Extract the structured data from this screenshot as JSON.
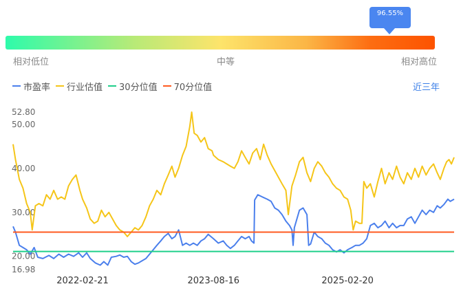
{
  "indicator": {
    "tooltip_value": "96.55%",
    "percentile": 0.9655,
    "low_label": "相对低位",
    "mid_label": "中等",
    "high_label": "相对高位"
  },
  "period_link": "近三年",
  "colors": {
    "pe": "#4a7fec",
    "industry": "#f5c518",
    "p30": "#1fcf8a",
    "p70": "#ff5a1f"
  },
  "chart_data": {
    "type": "line",
    "title": "",
    "xlabel": "",
    "ylabel": "",
    "ylim": [
      16.98,
      52.8
    ],
    "yticks": [
      16.98,
      20.0,
      30.0,
      40.0,
      50.0,
      52.8
    ],
    "ytick_labels": [
      "16.98",
      "20.00",
      "30.00",
      "40.00",
      "50.00",
      "52.80"
    ],
    "x_range": [
      "2021-05-10",
      "2026-05-06"
    ],
    "xtick_labels": [
      "2022-02-21",
      "2023-08-16",
      "2025-02-20"
    ],
    "legend_position": "top-left",
    "grid": false,
    "series": [
      {
        "name": "市盈率",
        "color_key": "pe",
        "points": [
          [
            "2021-05-10",
            26.8
          ],
          [
            "2021-05-20",
            25.5
          ],
          [
            "2021-06-05",
            22.5
          ],
          [
            "2021-06-20",
            22.0
          ],
          [
            "2021-07-05",
            21.5
          ],
          [
            "2021-07-20",
            20.5
          ],
          [
            "2021-08-05",
            22.0
          ],
          [
            "2021-08-20",
            19.8
          ],
          [
            "2021-09-10",
            19.5
          ],
          [
            "2021-10-05",
            20.2
          ],
          [
            "2021-10-25",
            19.5
          ],
          [
            "2021-11-15",
            20.5
          ],
          [
            "2021-12-05",
            19.8
          ],
          [
            "2021-12-25",
            20.5
          ],
          [
            "2022-01-15",
            20.0
          ],
          [
            "2022-02-05",
            20.8
          ],
          [
            "2022-02-21",
            19.8
          ],
          [
            "2022-03-10",
            20.8
          ],
          [
            "2022-03-25",
            19.5
          ],
          [
            "2022-04-15",
            18.5
          ],
          [
            "2022-05-05",
            18.0
          ],
          [
            "2022-05-20",
            18.8
          ],
          [
            "2022-06-05",
            18.0
          ],
          [
            "2022-06-20",
            19.8
          ],
          [
            "2022-07-10",
            20.0
          ],
          [
            "2022-07-25",
            20.3
          ],
          [
            "2022-08-10",
            19.8
          ],
          [
            "2022-08-25",
            20.0
          ],
          [
            "2022-09-10",
            18.8
          ],
          [
            "2022-09-25",
            18.2
          ],
          [
            "2022-10-10",
            18.5
          ],
          [
            "2022-10-25",
            19.0
          ],
          [
            "2022-11-10",
            19.5
          ],
          [
            "2022-11-25",
            20.5
          ],
          [
            "2022-12-10",
            21.5
          ],
          [
            "2022-12-25",
            22.5
          ],
          [
            "2023-01-10",
            23.5
          ],
          [
            "2023-01-25",
            24.5
          ],
          [
            "2023-02-10",
            25.2
          ],
          [
            "2023-02-25",
            24.0
          ],
          [
            "2023-03-10",
            24.5
          ],
          [
            "2023-03-25",
            26.0
          ],
          [
            "2023-04-10",
            22.5
          ],
          [
            "2023-04-25",
            23.0
          ],
          [
            "2023-05-10",
            22.5
          ],
          [
            "2023-05-25",
            23.0
          ],
          [
            "2023-06-10",
            22.5
          ],
          [
            "2023-06-25",
            23.5
          ],
          [
            "2023-07-10",
            24.0
          ],
          [
            "2023-07-25",
            25.0
          ],
          [
            "2023-08-05",
            24.5
          ],
          [
            "2023-08-16",
            24.0
          ],
          [
            "2023-09-05",
            23.0
          ],
          [
            "2023-09-25",
            23.5
          ],
          [
            "2023-10-10",
            22.5
          ],
          [
            "2023-10-25",
            21.8
          ],
          [
            "2023-11-10",
            22.5
          ],
          [
            "2023-11-25",
            23.5
          ],
          [
            "2023-12-10",
            24.5
          ],
          [
            "2023-12-25",
            24.0
          ],
          [
            "2024-01-10",
            24.5
          ],
          [
            "2024-01-20",
            23.5
          ],
          [
            "2024-01-30",
            23.0
          ],
          [
            "2024-02-02",
            32.8
          ],
          [
            "2024-02-15",
            34.0
          ],
          [
            "2024-03-05",
            33.5
          ],
          [
            "2024-03-25",
            33.0
          ],
          [
            "2024-04-10",
            32.5
          ],
          [
            "2024-04-25",
            31.0
          ],
          [
            "2024-05-10",
            30.5
          ],
          [
            "2024-05-25",
            29.5
          ],
          [
            "2024-06-10",
            28.0
          ],
          [
            "2024-06-25",
            27.0
          ],
          [
            "2024-07-05",
            26.0
          ],
          [
            "2024-07-10",
            22.5
          ],
          [
            "2024-07-15",
            26.5
          ],
          [
            "2024-08-05",
            30.5
          ],
          [
            "2024-08-20",
            31.0
          ],
          [
            "2024-09-05",
            29.5
          ],
          [
            "2024-09-12",
            22.5
          ],
          [
            "2024-09-20",
            22.8
          ],
          [
            "2024-10-05",
            25.5
          ],
          [
            "2024-10-20",
            24.5
          ],
          [
            "2024-11-05",
            24.0
          ],
          [
            "2024-11-20",
            23.0
          ],
          [
            "2024-12-05",
            22.5
          ],
          [
            "2024-12-20",
            21.5
          ],
          [
            "2025-01-05",
            21.0
          ],
          [
            "2025-01-20",
            21.5
          ],
          [
            "2025-02-05",
            20.8
          ],
          [
            "2025-02-20",
            21.5
          ],
          [
            "2025-03-10",
            22.0
          ],
          [
            "2025-03-25",
            22.5
          ],
          [
            "2025-04-10",
            22.5
          ],
          [
            "2025-04-25",
            23.0
          ],
          [
            "2025-05-10",
            24.0
          ],
          [
            "2025-05-25",
            27.0
          ],
          [
            "2025-06-10",
            27.5
          ],
          [
            "2025-06-25",
            26.5
          ],
          [
            "2025-07-10",
            27.0
          ],
          [
            "2025-07-25",
            28.0
          ],
          [
            "2025-08-10",
            26.5
          ],
          [
            "2025-08-25",
            27.5
          ],
          [
            "2025-09-10",
            26.5
          ],
          [
            "2025-09-25",
            27.0
          ],
          [
            "2025-10-10",
            27.0
          ],
          [
            "2025-10-25",
            28.5
          ],
          [
            "2025-11-10",
            29.0
          ],
          [
            "2025-11-25",
            27.5
          ],
          [
            "2025-12-10",
            29.0
          ],
          [
            "2025-12-25",
            30.5
          ],
          [
            "2026-01-10",
            29.5
          ],
          [
            "2026-01-25",
            30.5
          ],
          [
            "2026-02-10",
            30.0
          ],
          [
            "2026-02-25",
            31.5
          ],
          [
            "2026-03-10",
            31.0
          ],
          [
            "2026-03-25",
            31.8
          ],
          [
            "2026-04-10",
            33.0
          ],
          [
            "2026-04-20",
            32.5
          ],
          [
            "2026-05-06",
            33.0
          ]
        ]
      },
      {
        "name": "行业估值",
        "color_key": "industry",
        "points": [
          [
            "2021-05-10",
            45.5
          ],
          [
            "2021-05-20",
            42.0
          ],
          [
            "2021-06-05",
            37.5
          ],
          [
            "2021-06-20",
            35.5
          ],
          [
            "2021-07-05",
            32.0
          ],
          [
            "2021-07-20",
            30.0
          ],
          [
            "2021-07-28",
            26.0
          ],
          [
            "2021-08-10",
            31.5
          ],
          [
            "2021-08-25",
            32.0
          ],
          [
            "2021-09-10",
            31.5
          ],
          [
            "2021-09-25",
            34.0
          ],
          [
            "2021-10-10",
            33.0
          ],
          [
            "2021-10-25",
            35.0
          ],
          [
            "2021-11-10",
            33.0
          ],
          [
            "2021-11-25",
            33.5
          ],
          [
            "2021-12-10",
            33.0
          ],
          [
            "2021-12-25",
            36.0
          ],
          [
            "2022-01-10",
            37.5
          ],
          [
            "2022-01-25",
            38.5
          ],
          [
            "2022-02-10",
            35.0
          ],
          [
            "2022-02-21",
            33.0
          ],
          [
            "2022-03-10",
            31.0
          ],
          [
            "2022-03-25",
            28.5
          ],
          [
            "2022-04-10",
            27.5
          ],
          [
            "2022-04-25",
            28.0
          ],
          [
            "2022-05-10",
            30.5
          ],
          [
            "2022-05-25",
            29.0
          ],
          [
            "2022-06-10",
            30.0
          ],
          [
            "2022-06-25",
            28.5
          ],
          [
            "2022-07-10",
            27.0
          ],
          [
            "2022-07-25",
            26.0
          ],
          [
            "2022-08-10",
            25.5
          ],
          [
            "2022-08-25",
            24.5
          ],
          [
            "2022-09-10",
            25.5
          ],
          [
            "2022-09-25",
            26.5
          ],
          [
            "2022-10-10",
            26.0
          ],
          [
            "2022-10-25",
            27.0
          ],
          [
            "2022-11-10",
            29.0
          ],
          [
            "2022-11-25",
            31.5
          ],
          [
            "2022-12-10",
            33.0
          ],
          [
            "2022-12-25",
            35.0
          ],
          [
            "2023-01-10",
            34.0
          ],
          [
            "2023-01-25",
            36.5
          ],
          [
            "2023-02-10",
            38.5
          ],
          [
            "2023-02-25",
            40.5
          ],
          [
            "2023-03-10",
            38.0
          ],
          [
            "2023-03-25",
            40.0
          ],
          [
            "2023-04-10",
            43.0
          ],
          [
            "2023-04-25",
            45.0
          ],
          [
            "2023-05-10",
            49.5
          ],
          [
            "2023-05-18",
            52.8
          ],
          [
            "2023-05-28",
            48.0
          ],
          [
            "2023-06-10",
            47.5
          ],
          [
            "2023-06-25",
            46.0
          ],
          [
            "2023-07-10",
            47.0
          ],
          [
            "2023-07-25",
            44.5
          ],
          [
            "2023-08-10",
            44.0
          ],
          [
            "2023-08-16",
            43.0
          ],
          [
            "2023-09-05",
            42.0
          ],
          [
            "2023-09-25",
            41.5
          ],
          [
            "2023-10-10",
            41.0
          ],
          [
            "2023-10-25",
            40.5
          ],
          [
            "2023-11-10",
            40.0
          ],
          [
            "2023-11-25",
            41.5
          ],
          [
            "2023-12-10",
            44.0
          ],
          [
            "2023-12-25",
            42.5
          ],
          [
            "2024-01-10",
            41.0
          ],
          [
            "2024-01-25",
            43.5
          ],
          [
            "2024-02-10",
            44.5
          ],
          [
            "2024-02-25",
            42.0
          ],
          [
            "2024-03-10",
            45.5
          ],
          [
            "2024-03-25",
            43.0
          ],
          [
            "2024-04-10",
            41.0
          ],
          [
            "2024-04-25",
            39.5
          ],
          [
            "2024-05-10",
            38.0
          ],
          [
            "2024-05-25",
            36.5
          ],
          [
            "2024-06-10",
            35.0
          ],
          [
            "2024-06-20",
            29.5
          ],
          [
            "2024-07-05",
            36.0
          ],
          [
            "2024-07-20",
            38.5
          ],
          [
            "2024-08-05",
            41.5
          ],
          [
            "2024-08-20",
            42.5
          ],
          [
            "2024-09-05",
            39.0
          ],
          [
            "2024-09-20",
            37.0
          ],
          [
            "2024-10-05",
            40.0
          ],
          [
            "2024-10-20",
            41.5
          ],
          [
            "2024-11-05",
            40.5
          ],
          [
            "2024-11-20",
            39.0
          ],
          [
            "2024-12-05",
            38.0
          ],
          [
            "2024-12-20",
            36.5
          ],
          [
            "2025-01-05",
            35.5
          ],
          [
            "2025-01-20",
            35.0
          ],
          [
            "2025-02-05",
            33.5
          ],
          [
            "2025-02-20",
            33.0
          ],
          [
            "2025-03-05",
            30.5
          ],
          [
            "2025-03-15",
            26.0
          ],
          [
            "2025-03-25",
            28.0
          ],
          [
            "2025-04-10",
            27.5
          ],
          [
            "2025-04-20",
            27.5
          ],
          [
            "2025-04-28",
            37.0
          ],
          [
            "2025-05-10",
            35.5
          ],
          [
            "2025-05-25",
            36.5
          ],
          [
            "2025-06-10",
            33.5
          ],
          [
            "2025-06-25",
            37.0
          ],
          [
            "2025-07-10",
            40.0
          ],
          [
            "2025-07-25",
            36.5
          ],
          [
            "2025-08-10",
            39.0
          ],
          [
            "2025-08-25",
            37.5
          ],
          [
            "2025-09-10",
            40.5
          ],
          [
            "2025-09-25",
            38.0
          ],
          [
            "2025-10-10",
            36.5
          ],
          [
            "2025-10-25",
            39.0
          ],
          [
            "2025-11-10",
            37.5
          ],
          [
            "2025-11-25",
            40.0
          ],
          [
            "2025-12-10",
            38.0
          ],
          [
            "2025-12-25",
            40.5
          ],
          [
            "2026-01-10",
            38.5
          ],
          [
            "2026-01-25",
            40.0
          ],
          [
            "2026-02-10",
            41.0
          ],
          [
            "2026-02-25",
            39.0
          ],
          [
            "2026-03-10",
            37.5
          ],
          [
            "2026-03-25",
            40.0
          ],
          [
            "2026-04-05",
            41.5
          ],
          [
            "2026-04-15",
            42.0
          ],
          [
            "2026-04-25",
            41.0
          ],
          [
            "2026-05-06",
            42.5
          ]
        ]
      },
      {
        "name": "30分位值",
        "color_key": "p30",
        "constant": 21.1
      },
      {
        "name": "70分位值",
        "color_key": "p70",
        "constant": 25.5
      }
    ]
  }
}
